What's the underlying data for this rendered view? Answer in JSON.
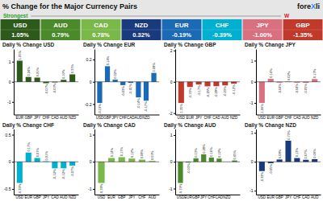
{
  "chart_data": [
    {
      "type": "tiles",
      "title": "% Change for the Major Currency Pairs",
      "annotations": [
        "Strongest",
        "W",
        "fore",
        "X",
        "li"
      ],
      "categories": [
        "USD",
        "AUD",
        "CAD",
        "NZD",
        "EUR",
        "CHF",
        "JPY",
        "GBP"
      ],
      "values": [
        1.05,
        0.79,
        0.78,
        0.32,
        -0.19,
        -0.39,
        -1.0,
        -1.35
      ],
      "value_labels": [
        "1.05%",
        "0.79%",
        "0.78%",
        "0.32%",
        "-0.19%",
        "-0.39%",
        "-1.00%",
        "-1.35%"
      ],
      "colors": [
        "#2d5a1b",
        "#4a8a2a",
        "#7ab84a",
        "#1a3a7e",
        "#1a6ab5",
        "#00b0d0",
        "#d87080",
        "#c0392b"
      ],
      "data_labels": true
    },
    {
      "type": "bar",
      "title": "Daily % Change USD",
      "color": "#2d5a1b",
      "categories": [
        "EUR",
        "GBP",
        "JPY",
        "CHF",
        "CAD",
        "AUD",
        "NZD"
      ],
      "values": [
        1.05,
        0.24,
        0.21,
        -0.07,
        -0.03,
        0.1,
        0.37
      ],
      "value_labels": [
        "1.05%",
        "0.24%",
        "0.21%",
        "-0.07%",
        "-0.03%",
        "0.10%",
        "0.37%"
      ],
      "data_labels": true,
      "ylim": [
        -1.6275,
        1.6275
      ],
      "yticks": [
        -1,
        0,
        1
      ],
      "grid": false
    },
    {
      "type": "bar",
      "title": "Daily % Change EUR",
      "color": "#1a6ab5",
      "categories": [
        "USD",
        "GBP",
        "JPY",
        "CHF",
        "CAD",
        "AUD",
        "NZD",
        null
      ],
      "values": [
        -0.19,
        0.14,
        0.02,
        -0.03,
        -0.01,
        -0.14,
        -0.17,
        0.08
      ],
      "value_labels": [
        "-0.19%",
        "0.14%",
        "0.02%",
        "-0.03%",
        "-0.01%",
        "-0.14%",
        "-0.17%",
        "0.08%"
      ],
      "data_labels": true,
      "ylim": [
        -0.2945,
        0.2945
      ],
      "yticks": [
        -0.2,
        0,
        0.2
      ],
      "grid": false
    },
    {
      "type": "bar",
      "title": "Daily % Change GBP",
      "color": "#c0392b",
      "categories": [
        "USD",
        "EUR",
        "JPY",
        "CHF",
        "CAD",
        "AUD",
        "NZD"
      ],
      "values": [
        -1.35,
        -0.33,
        -0.17,
        -0.29,
        -0.28,
        -0.23,
        -0.12
      ],
      "value_labels": [
        "-1.35%",
        "-0.33%",
        "-0.17%",
        "-0.29%",
        "-0.28%",
        "-0.23%",
        "-0.12%"
      ],
      "data_labels": true,
      "ylim": [
        -2.0925,
        2.0925
      ],
      "yticks": [
        -2,
        0,
        2
      ],
      "grid": false
    },
    {
      "type": "bar",
      "title": "Daily % Change JPY",
      "color": "#d87080",
      "categories": [
        "USD",
        "EUR",
        "GBP",
        "CHF",
        "CAD",
        "AUD",
        "NZD"
      ],
      "values": [
        -1.0,
        0.14,
        -0.04,
        0.02,
        -0.04,
        -0.05,
        0.13
      ],
      "value_labels": [
        "-1.00%",
        "0.14%",
        "-0.04%",
        "0.02%",
        "-0.04%",
        "-0.05%",
        "0.13%"
      ],
      "data_labels": true,
      "ylim": [
        -1.55,
        1.55
      ],
      "yticks": [
        -1,
        0,
        1
      ],
      "grid": false
    },
    {
      "type": "bar",
      "title": "Daily % Change CHF",
      "color": "#00b0d0",
      "categories": [
        "USD",
        "EUR",
        "GBP",
        "JPY",
        "CAD",
        "AUD",
        "NZD"
      ],
      "values": [
        -0.39,
        0.17,
        0.07,
        0.01,
        -0.12,
        -0.12,
        -0.07
      ],
      "value_labels": [
        "-0.39%",
        "0.17%",
        "0.07%",
        "0.01%",
        "-0.12%",
        "-0.12%",
        "-0.07%"
      ],
      "data_labels": true,
      "ylim": [
        -0.6045,
        0.6045
      ],
      "yticks": [
        -0.5,
        0,
        0.5
      ],
      "grid": false
    },
    {
      "type": "bar",
      "title": "Daily % Change CAD",
      "color": "#7ab84a",
      "categories": [
        "USD",
        "EUR",
        "GBP",
        "JPY",
        "CHF",
        "AUD"
      ],
      "values": [
        -0.78,
        0.14,
        0.17,
        0.12,
        0.08,
        0.03
      ],
      "value_labels": [
        "-0.78%",
        "0.14%",
        "0.17%",
        "0.12%",
        "0.08%",
        "0.03%"
      ],
      "data_labels": true,
      "ylim": [
        -1.209,
        1.209
      ],
      "yticks": [
        -1,
        0,
        1
      ],
      "grid": false
    },
    {
      "type": "bar",
      "title": "Daily % Change AUD",
      "color": "#4a8a2a",
      "categories": [
        "USD",
        "EUR",
        "GBP",
        "JPY",
        "CHF",
        "CAD",
        "NZD",
        null
      ],
      "values": [
        -0.79,
        -0.03,
        0.13,
        0.28,
        0.16,
        0.12,
        -0.0,
        0.05
      ],
      "value_labels": [
        "-0.79%",
        "-0.03%",
        "0.13%",
        "0.28%",
        "0.16%",
        "0.12%",
        null,
        "0.05%"
      ],
      "data_labels": true,
      "ylim": [
        -1.2245,
        1.2245
      ],
      "yticks": [
        -1,
        0,
        1
      ],
      "grid": false
    },
    {
      "type": "bar",
      "title": "Daily % Change NZD",
      "color": "#1a3a7e",
      "categories": [
        "USD",
        "EUR",
        "GBP",
        "JPY",
        "CHF",
        "CAD",
        "AUD"
      ],
      "values": [
        -0.32,
        -0.049,
        0.08,
        0.73,
        0.13,
        0.07,
        0.09
      ],
      "value_labels": [
        "-0.32%",
        "-0.05%",
        "0.08%",
        "0.73%",
        "0.13%",
        "0.07%",
        "0.09%"
      ],
      "data_labels": true,
      "ylim": [
        -1.1315,
        1.1315
      ],
      "yticks": [
        -1,
        0,
        1
      ],
      "grid": false
    }
  ]
}
